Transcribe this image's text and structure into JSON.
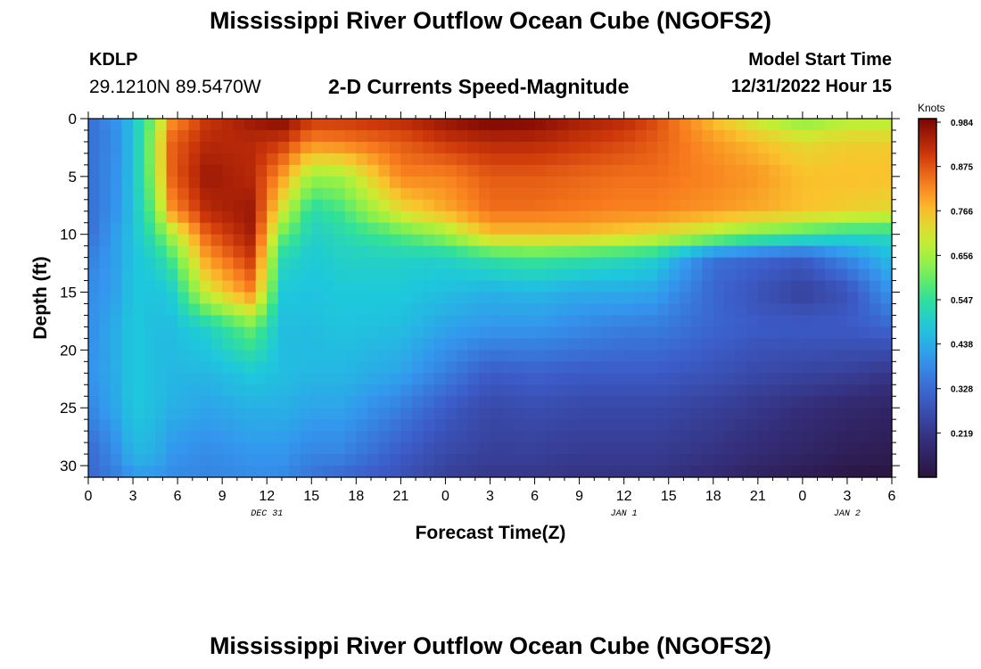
{
  "header": {
    "title": "Mississippi River Outflow Ocean Cube (NGOFS2)",
    "station": "KDLP",
    "coords": "29.1210N  89.5470W",
    "subtitle": "2-D Currents Speed-Magnitude",
    "model_start_label": "Model Start Time",
    "model_start_value": "12/31/2022 Hour 15"
  },
  "footer": {
    "title": "Mississippi River Outflow Ocean Cube (NGOFS2)"
  },
  "chart_data": {
    "type": "heatmap",
    "title": "2-D Currents Speed-Magnitude",
    "xlabel": "Forecast Time(Z)",
    "ylabel": "Depth (ft)",
    "x_range_hours": [
      0,
      54
    ],
    "y_range": [
      0,
      31
    ],
    "y_reversed": true,
    "x_tick_labels": [
      "0",
      "3",
      "6",
      "9",
      "12",
      "15",
      "18",
      "21",
      "0",
      "3",
      "6",
      "9",
      "12",
      "15",
      "18",
      "21",
      "0",
      "3",
      "6"
    ],
    "y_tick_labels": [
      "0",
      "5",
      "10",
      "15",
      "20",
      "25",
      "30"
    ],
    "date_labels": [
      {
        "text": "DEC 31",
        "hour": 12
      },
      {
        "text": "JAN 1",
        "hour": 36
      },
      {
        "text": "JAN 2",
        "hour": 51
      }
    ],
    "colorbar": {
      "unit": "Knots",
      "ticks": [
        "0.984",
        "0.875",
        "0.766",
        "0.656",
        "0.547",
        "0.438",
        "0.328",
        "0.219"
      ],
      "min": 0.11,
      "max": 0.984
    },
    "grid": false,
    "sample_times_hours": [
      0,
      2,
      3,
      4.5,
      5.5,
      8,
      11,
      13,
      15,
      17,
      21,
      24,
      27,
      30,
      33,
      36,
      38,
      42,
      45,
      48,
      51,
      54
    ],
    "sample_depths_ft": [
      0,
      2,
      5,
      8,
      10,
      12,
      15,
      18,
      22,
      25,
      29,
      31
    ],
    "values_knots": [
      [
        0.33,
        0.33,
        0.33,
        0.33,
        0.33,
        0.36,
        0.38,
        0.38,
        0.39,
        0.37,
        0.32,
        0.32
      ],
      [
        0.4,
        0.39,
        0.4,
        0.4,
        0.42,
        0.42,
        0.42,
        0.44,
        0.44,
        0.43,
        0.39,
        0.36
      ],
      [
        0.47,
        0.47,
        0.47,
        0.47,
        0.47,
        0.47,
        0.48,
        0.48,
        0.48,
        0.48,
        0.45,
        0.4
      ],
      [
        0.62,
        0.65,
        0.64,
        0.6,
        0.55,
        0.5,
        0.47,
        0.46,
        0.46,
        0.46,
        0.44,
        0.4
      ],
      [
        0.8,
        0.85,
        0.85,
        0.8,
        0.65,
        0.56,
        0.48,
        0.46,
        0.45,
        0.44,
        0.4,
        0.38
      ],
      [
        0.9,
        0.92,
        0.95,
        0.92,
        0.86,
        0.8,
        0.7,
        0.5,
        0.45,
        0.42,
        0.38,
        0.37
      ],
      [
        0.95,
        0.92,
        0.92,
        0.95,
        0.94,
        0.9,
        0.82,
        0.6,
        0.48,
        0.44,
        0.4,
        0.38
      ],
      [
        0.98,
        0.9,
        0.8,
        0.7,
        0.6,
        0.52,
        0.48,
        0.46,
        0.46,
        0.44,
        0.4,
        0.38
      ],
      [
        0.9,
        0.82,
        0.64,
        0.52,
        0.5,
        0.48,
        0.47,
        0.46,
        0.45,
        0.42,
        0.37,
        0.34
      ],
      [
        0.9,
        0.83,
        0.65,
        0.56,
        0.52,
        0.5,
        0.48,
        0.47,
        0.45,
        0.42,
        0.37,
        0.32
      ],
      [
        0.92,
        0.86,
        0.82,
        0.72,
        0.58,
        0.5,
        0.48,
        0.46,
        0.42,
        0.36,
        0.3,
        0.28
      ],
      [
        0.96,
        0.9,
        0.82,
        0.78,
        0.64,
        0.5,
        0.46,
        0.42,
        0.36,
        0.3,
        0.26,
        0.24
      ],
      [
        0.99,
        0.92,
        0.86,
        0.84,
        0.76,
        0.54,
        0.44,
        0.4,
        0.3,
        0.26,
        0.24,
        0.22
      ],
      [
        0.98,
        0.92,
        0.86,
        0.84,
        0.76,
        0.56,
        0.45,
        0.4,
        0.31,
        0.27,
        0.24,
        0.22
      ],
      [
        0.94,
        0.9,
        0.85,
        0.83,
        0.76,
        0.54,
        0.43,
        0.38,
        0.3,
        0.26,
        0.23,
        0.21
      ],
      [
        0.92,
        0.88,
        0.84,
        0.82,
        0.74,
        0.52,
        0.43,
        0.36,
        0.3,
        0.26,
        0.23,
        0.21
      ],
      [
        0.88,
        0.86,
        0.84,
        0.82,
        0.72,
        0.5,
        0.42,
        0.36,
        0.3,
        0.26,
        0.23,
        0.21
      ],
      [
        0.76,
        0.8,
        0.82,
        0.8,
        0.66,
        0.34,
        0.32,
        0.32,
        0.28,
        0.24,
        0.21,
        0.19
      ],
      [
        0.68,
        0.76,
        0.8,
        0.78,
        0.6,
        0.32,
        0.28,
        0.3,
        0.26,
        0.22,
        0.19,
        0.16
      ],
      [
        0.62,
        0.72,
        0.76,
        0.76,
        0.56,
        0.3,
        0.24,
        0.3,
        0.25,
        0.2,
        0.17,
        0.14
      ],
      [
        0.66,
        0.74,
        0.76,
        0.74,
        0.52,
        0.38,
        0.28,
        0.3,
        0.24,
        0.18,
        0.15,
        0.12
      ],
      [
        0.66,
        0.74,
        0.76,
        0.72,
        0.52,
        0.46,
        0.4,
        0.32,
        0.22,
        0.17,
        0.14,
        0.11
      ]
    ]
  }
}
